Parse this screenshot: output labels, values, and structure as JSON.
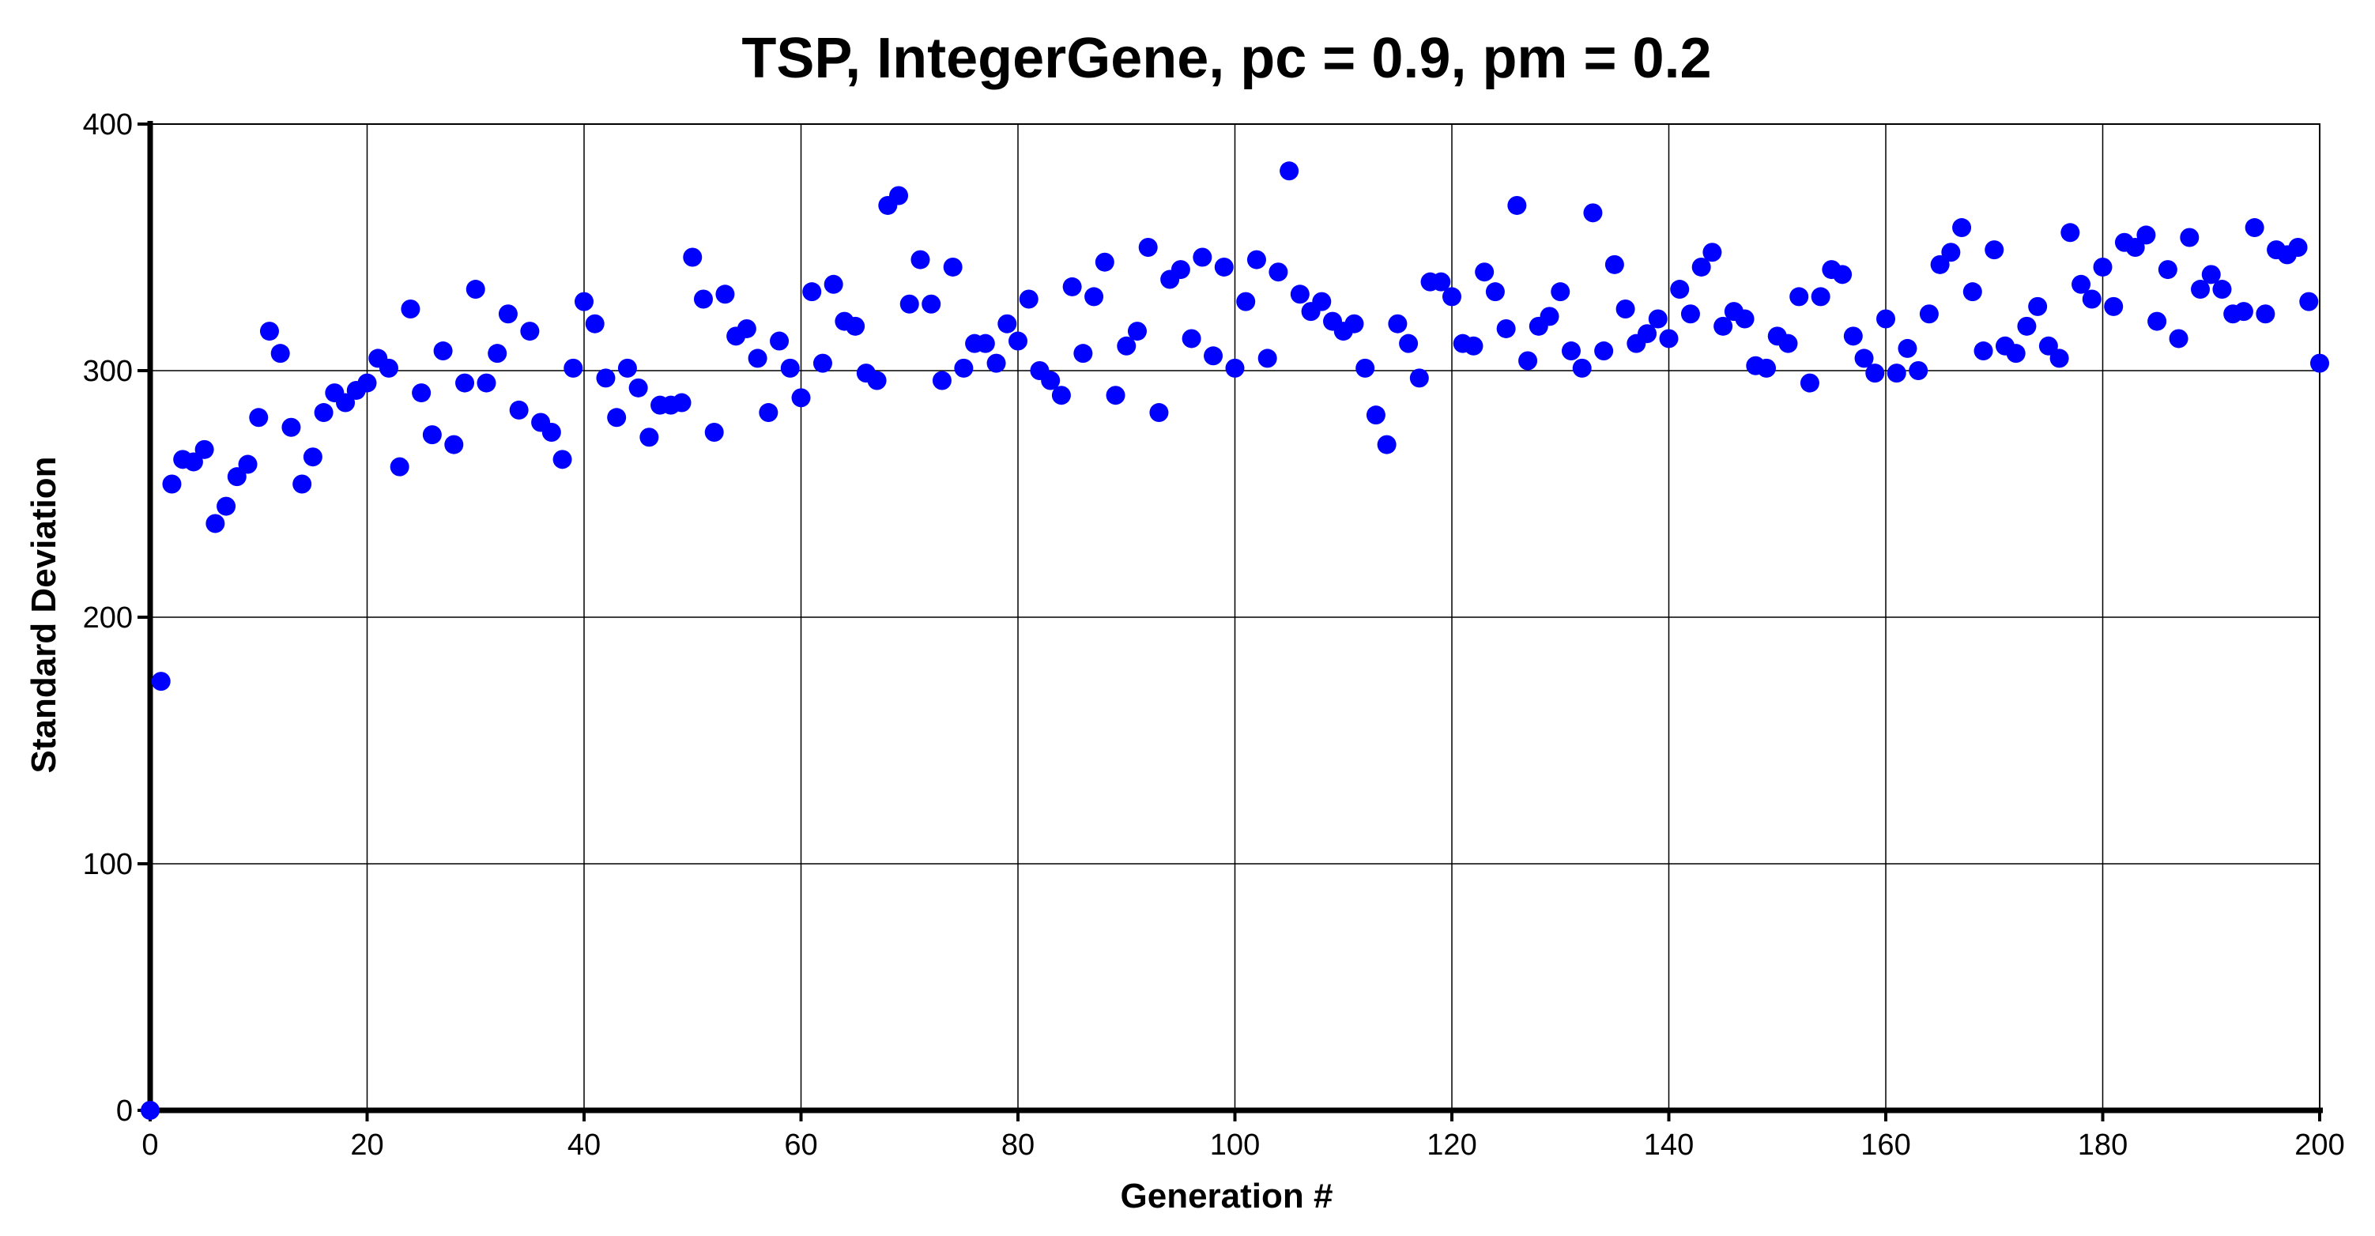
{
  "chart_data": {
    "type": "scatter",
    "title": "TSP, IntegerGene, pc = 0.9, pm = 0.2",
    "xlabel": "Generation #",
    "ylabel": "Standard Deviation",
    "xlim": [
      0,
      200
    ],
    "ylim": [
      0,
      400
    ],
    "xticks": [
      0,
      20,
      40,
      60,
      80,
      100,
      120,
      140,
      160,
      180,
      200
    ],
    "yticks": [
      0,
      100,
      200,
      300,
      400
    ],
    "grid": true,
    "marker_color": "#0000ff",
    "series": [
      {
        "x": [
          0,
          1,
          2,
          3,
          4,
          5,
          6,
          7,
          8,
          9,
          10,
          11,
          12,
          13,
          14,
          15,
          16,
          17,
          18,
          19,
          20,
          21,
          22,
          23,
          24,
          25,
          26,
          27,
          28,
          29,
          30,
          31,
          32,
          33,
          34,
          35,
          36,
          37,
          38,
          39,
          40,
          41,
          42,
          43,
          44,
          45,
          46,
          47,
          48,
          49,
          50,
          51,
          52,
          53,
          54,
          55,
          56,
          57,
          58,
          59,
          60,
          61,
          62,
          63,
          64,
          65,
          66,
          67,
          68,
          69,
          70,
          71,
          72,
          73,
          74,
          75,
          76,
          77,
          78,
          79,
          80,
          81,
          82,
          83,
          84,
          85,
          86,
          87,
          88,
          89,
          90,
          91,
          92,
          93,
          94,
          95,
          96,
          97,
          98,
          99,
          100,
          101,
          102,
          103,
          104,
          105,
          106,
          107,
          108,
          109,
          110,
          111,
          112,
          113,
          114,
          115,
          116,
          117,
          118,
          119,
          120,
          121,
          122,
          123,
          124,
          125,
          126,
          127,
          128,
          129,
          130,
          131,
          132,
          133,
          134,
          135,
          136,
          137,
          138,
          139,
          140,
          141,
          142,
          143,
          144,
          145,
          146,
          147,
          148,
          149,
          150,
          151,
          152,
          153,
          154,
          155,
          156,
          157,
          158,
          159,
          160,
          161,
          162,
          163,
          164,
          165,
          166,
          167,
          168,
          169,
          170,
          171,
          172,
          173,
          174,
          175,
          176,
          177,
          178,
          179,
          180,
          181,
          182,
          183,
          184,
          185,
          186,
          187,
          188,
          189,
          190,
          191,
          192,
          193,
          194,
          195,
          196,
          197,
          198,
          199,
          200
        ],
        "y": [
          0,
          174,
          254,
          264,
          263,
          268,
          238,
          245,
          257,
          262,
          281,
          316,
          307,
          277,
          254,
          265,
          283,
          291,
          287,
          292,
          295,
          305,
          301,
          261,
          325,
          291,
          274,
          308,
          270,
          295,
          333,
          295,
          307,
          323,
          284,
          316,
          279,
          275,
          264,
          301,
          328,
          319,
          297,
          281,
          301,
          293,
          273,
          286,
          286,
          287,
          346,
          329,
          275,
          331,
          314,
          317,
          305,
          283,
          312,
          301,
          289,
          332,
          303,
          335,
          320,
          318,
          299,
          296,
          367,
          371,
          327,
          345,
          327,
          296,
          342,
          301,
          311,
          311,
          303,
          319,
          312,
          329,
          300,
          296,
          290,
          334,
          307,
          330,
          344,
          290,
          310,
          316,
          350,
          283,
          337,
          341,
          313,
          346,
          306,
          342,
          301,
          328,
          345,
          305,
          340,
          381,
          331,
          324,
          328,
          320,
          316,
          319,
          301,
          282,
          270,
          319,
          311,
          297,
          336,
          336,
          330,
          311,
          310,
          340,
          332,
          317,
          367,
          304,
          318,
          322,
          332,
          308,
          301,
          364,
          308,
          343,
          325,
          311,
          315,
          321,
          313,
          333,
          323,
          342,
          348,
          318,
          324,
          321,
          302,
          301,
          314,
          311,
          330,
          295,
          330,
          341,
          339,
          314,
          305,
          299,
          321,
          299,
          309,
          300,
          323,
          343,
          348,
          358,
          332,
          308,
          349,
          310,
          307,
          318,
          326,
          310,
          305,
          356,
          335,
          329,
          342,
          326,
          352,
          350,
          355,
          320,
          341,
          313,
          354,
          333,
          339,
          333,
          323,
          324,
          358,
          323,
          349,
          347,
          350,
          328,
          303
        ]
      }
    ]
  }
}
